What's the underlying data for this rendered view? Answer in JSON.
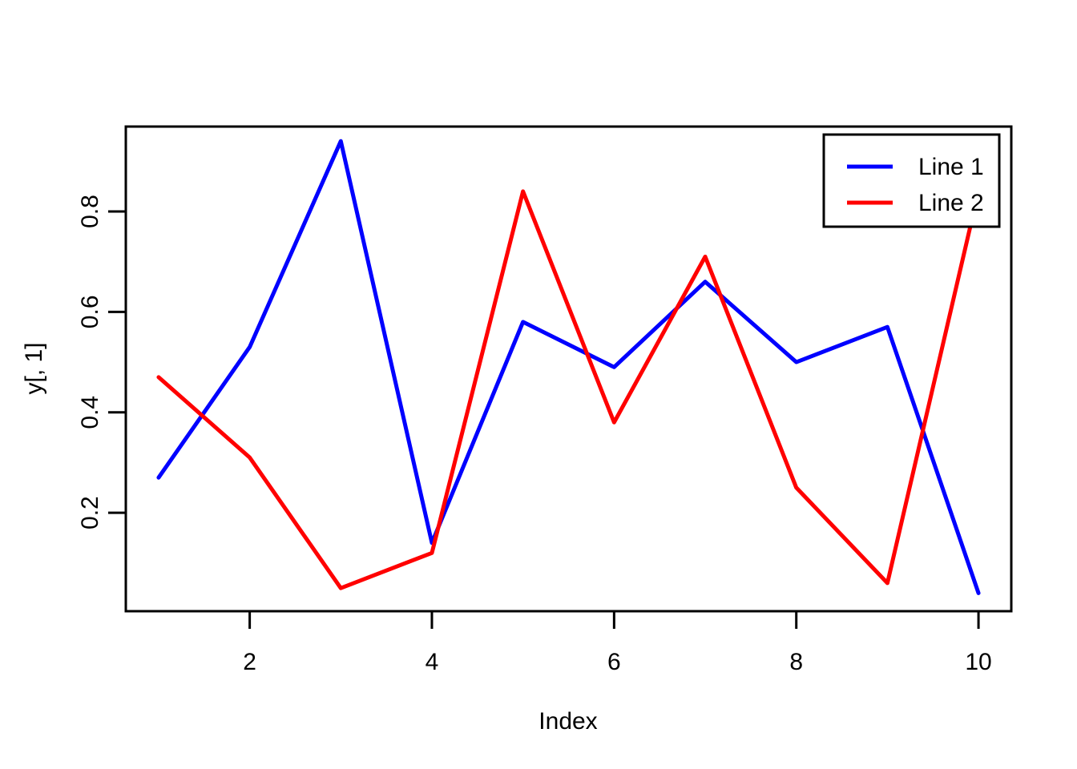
{
  "chart_data": {
    "type": "line",
    "title": "",
    "xlabel": "Index",
    "ylabel": "y[, 1]",
    "x": [
      1,
      2,
      3,
      4,
      5,
      6,
      7,
      8,
      9,
      10
    ],
    "series": [
      {
        "name": "Line 1",
        "color": "#0000ff",
        "values": [
          0.27,
          0.53,
          0.94,
          0.14,
          0.58,
          0.49,
          0.66,
          0.5,
          0.57,
          0.04
        ]
      },
      {
        "name": "Line 2",
        "color": "#ff0000",
        "values": [
          0.47,
          0.31,
          0.05,
          0.12,
          0.84,
          0.38,
          0.71,
          0.25,
          0.06,
          0.84
        ]
      }
    ],
    "x_ticks": [
      2,
      4,
      6,
      8,
      10
    ],
    "y_ticks": [
      0.2,
      0.4,
      0.6,
      0.8
    ],
    "xlim": [
      0.64,
      10.36
    ],
    "ylim": [
      0.004,
      0.969
    ],
    "grid": false,
    "legend": {
      "position": "top-right"
    },
    "axis_color": "#000000",
    "background_color": "#ffffff"
  }
}
